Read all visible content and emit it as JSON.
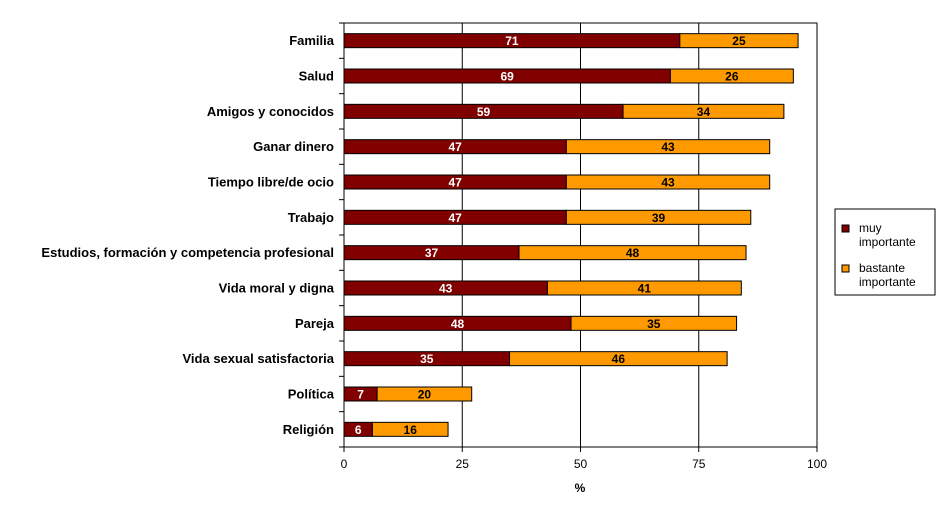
{
  "chart_data": {
    "type": "bar",
    "orientation": "horizontal",
    "stacked": true,
    "categories": [
      "Familia",
      "Salud",
      "Amigos y conocidos",
      "Ganar dinero",
      "Tiempo libre/de ocio",
      "Trabajo",
      "Estudios, formación y competencia profesional",
      "Vida moral y digna",
      "Pareja",
      "Vida sexual satisfactoria",
      "Política",
      "Religión"
    ],
    "series": [
      {
        "name": "muy importante",
        "color": "#800000",
        "label_color": "#ffffff",
        "values": [
          71,
          69,
          59,
          47,
          47,
          47,
          37,
          43,
          48,
          35,
          7,
          6
        ]
      },
      {
        "name": "bastante importante",
        "color": "#FF9900",
        "label_color": "#000000",
        "values": [
          25,
          26,
          34,
          43,
          43,
          39,
          48,
          41,
          35,
          46,
          20,
          16
        ]
      }
    ],
    "xlabel": "%",
    "xlim": [
      0,
      100
    ],
    "xticks": [
      "0",
      "25",
      "50",
      "75",
      "100"
    ],
    "grid": "vertical",
    "legend": "right"
  }
}
